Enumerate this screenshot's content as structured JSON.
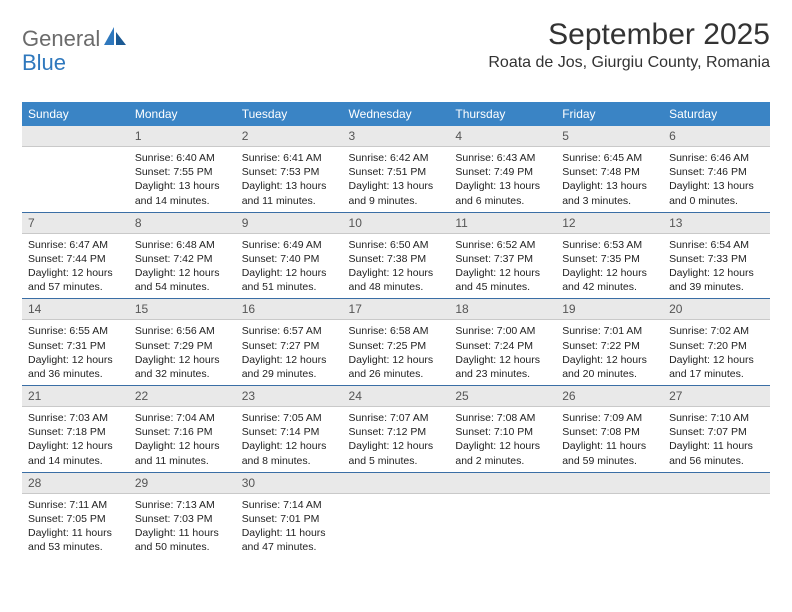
{
  "brand": {
    "part1": "General",
    "part2": "Blue"
  },
  "header": {
    "month_title": "September 2025",
    "location": "Roata de Jos, Giurgiu County, Romania"
  },
  "day_headers": [
    "Sunday",
    "Monday",
    "Tuesday",
    "Wednesday",
    "Thursday",
    "Friday",
    "Saturday"
  ],
  "colors": {
    "header_bg": "#3a84c5",
    "header_text": "#ffffff",
    "daynum_bg": "#e9e9e9",
    "row_border": "#3a6ea5",
    "logo_gray": "#6b6b6b",
    "logo_blue": "#2f78bd"
  },
  "weeks": [
    [
      {
        "blank": true
      },
      {
        "n": "1",
        "sunrise": "6:40 AM",
        "sunset": "7:55 PM",
        "daylight": "13 hours and 14 minutes."
      },
      {
        "n": "2",
        "sunrise": "6:41 AM",
        "sunset": "7:53 PM",
        "daylight": "13 hours and 11 minutes."
      },
      {
        "n": "3",
        "sunrise": "6:42 AM",
        "sunset": "7:51 PM",
        "daylight": "13 hours and 9 minutes."
      },
      {
        "n": "4",
        "sunrise": "6:43 AM",
        "sunset": "7:49 PM",
        "daylight": "13 hours and 6 minutes."
      },
      {
        "n": "5",
        "sunrise": "6:45 AM",
        "sunset": "7:48 PM",
        "daylight": "13 hours and 3 minutes."
      },
      {
        "n": "6",
        "sunrise": "6:46 AM",
        "sunset": "7:46 PM",
        "daylight": "13 hours and 0 minutes."
      }
    ],
    [
      {
        "n": "7",
        "sunrise": "6:47 AM",
        "sunset": "7:44 PM",
        "daylight": "12 hours and 57 minutes."
      },
      {
        "n": "8",
        "sunrise": "6:48 AM",
        "sunset": "7:42 PM",
        "daylight": "12 hours and 54 minutes."
      },
      {
        "n": "9",
        "sunrise": "6:49 AM",
        "sunset": "7:40 PM",
        "daylight": "12 hours and 51 minutes."
      },
      {
        "n": "10",
        "sunrise": "6:50 AM",
        "sunset": "7:38 PM",
        "daylight": "12 hours and 48 minutes."
      },
      {
        "n": "11",
        "sunrise": "6:52 AM",
        "sunset": "7:37 PM",
        "daylight": "12 hours and 45 minutes."
      },
      {
        "n": "12",
        "sunrise": "6:53 AM",
        "sunset": "7:35 PM",
        "daylight": "12 hours and 42 minutes."
      },
      {
        "n": "13",
        "sunrise": "6:54 AM",
        "sunset": "7:33 PM",
        "daylight": "12 hours and 39 minutes."
      }
    ],
    [
      {
        "n": "14",
        "sunrise": "6:55 AM",
        "sunset": "7:31 PM",
        "daylight": "12 hours and 36 minutes."
      },
      {
        "n": "15",
        "sunrise": "6:56 AM",
        "sunset": "7:29 PM",
        "daylight": "12 hours and 32 minutes."
      },
      {
        "n": "16",
        "sunrise": "6:57 AM",
        "sunset": "7:27 PM",
        "daylight": "12 hours and 29 minutes."
      },
      {
        "n": "17",
        "sunrise": "6:58 AM",
        "sunset": "7:25 PM",
        "daylight": "12 hours and 26 minutes."
      },
      {
        "n": "18",
        "sunrise": "7:00 AM",
        "sunset": "7:24 PM",
        "daylight": "12 hours and 23 minutes."
      },
      {
        "n": "19",
        "sunrise": "7:01 AM",
        "sunset": "7:22 PM",
        "daylight": "12 hours and 20 minutes."
      },
      {
        "n": "20",
        "sunrise": "7:02 AM",
        "sunset": "7:20 PM",
        "daylight": "12 hours and 17 minutes."
      }
    ],
    [
      {
        "n": "21",
        "sunrise": "7:03 AM",
        "sunset": "7:18 PM",
        "daylight": "12 hours and 14 minutes."
      },
      {
        "n": "22",
        "sunrise": "7:04 AM",
        "sunset": "7:16 PM",
        "daylight": "12 hours and 11 minutes."
      },
      {
        "n": "23",
        "sunrise": "7:05 AM",
        "sunset": "7:14 PM",
        "daylight": "12 hours and 8 minutes."
      },
      {
        "n": "24",
        "sunrise": "7:07 AM",
        "sunset": "7:12 PM",
        "daylight": "12 hours and 5 minutes."
      },
      {
        "n": "25",
        "sunrise": "7:08 AM",
        "sunset": "7:10 PM",
        "daylight": "12 hours and 2 minutes."
      },
      {
        "n": "26",
        "sunrise": "7:09 AM",
        "sunset": "7:08 PM",
        "daylight": "11 hours and 59 minutes."
      },
      {
        "n": "27",
        "sunrise": "7:10 AM",
        "sunset": "7:07 PM",
        "daylight": "11 hours and 56 minutes."
      }
    ],
    [
      {
        "n": "28",
        "sunrise": "7:11 AM",
        "sunset": "7:05 PM",
        "daylight": "11 hours and 53 minutes."
      },
      {
        "n": "29",
        "sunrise": "7:13 AM",
        "sunset": "7:03 PM",
        "daylight": "11 hours and 50 minutes."
      },
      {
        "n": "30",
        "sunrise": "7:14 AM",
        "sunset": "7:01 PM",
        "daylight": "11 hours and 47 minutes."
      },
      {
        "blank": true
      },
      {
        "blank": true
      },
      {
        "blank": true
      },
      {
        "blank": true
      }
    ]
  ],
  "labels": {
    "sunrise": "Sunrise:",
    "sunset": "Sunset:",
    "daylight": "Daylight:"
  }
}
